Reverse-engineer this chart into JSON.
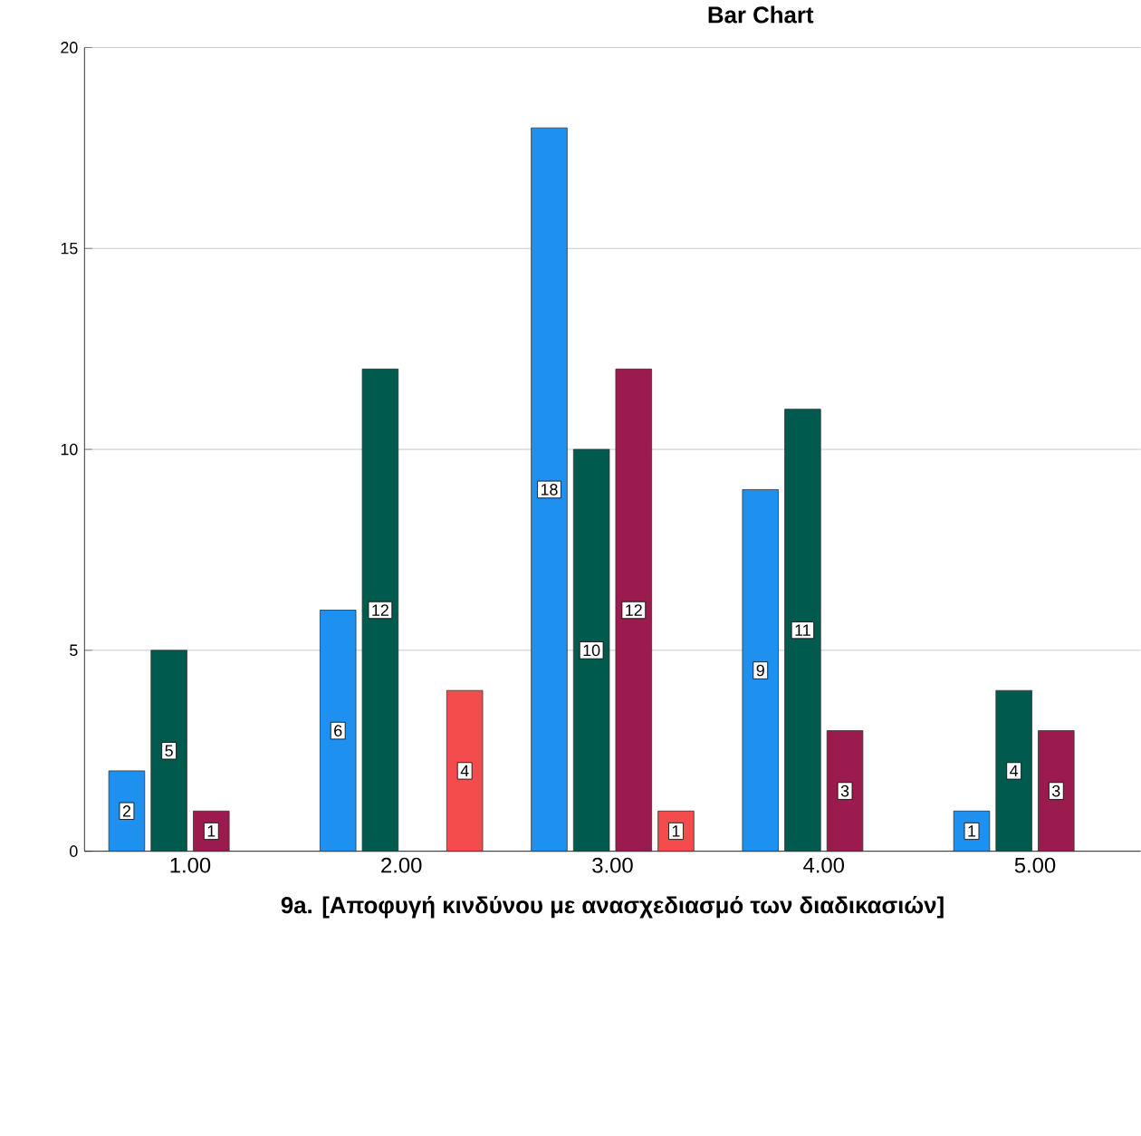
{
  "chart_data": {
    "type": "bar",
    "title": "Bar Chart",
    "xlabel": "9a. [Αποφυγή κινδύνου με ανασχεδιασμό των διαδικασιών]",
    "categories": [
      "1.00",
      "2.00",
      "3.00",
      "4.00",
      "5.00"
    ],
    "series": [
      {
        "color": "#1e90f0",
        "values": [
          2,
          6,
          18,
          9,
          1
        ]
      },
      {
        "color": "#005a4e",
        "values": [
          5,
          12,
          10,
          11,
          4
        ]
      },
      {
        "color": "#9c1b4e",
        "values": [
          1,
          null,
          12,
          3,
          3
        ]
      },
      {
        "color": "#f44c4c",
        "values": [
          null,
          4,
          1,
          null,
          null
        ]
      }
    ],
    "ylim": [
      0,
      20
    ],
    "yticks": [
      0,
      5,
      10,
      15,
      20
    ],
    "grid": "y",
    "data_labels": true
  }
}
